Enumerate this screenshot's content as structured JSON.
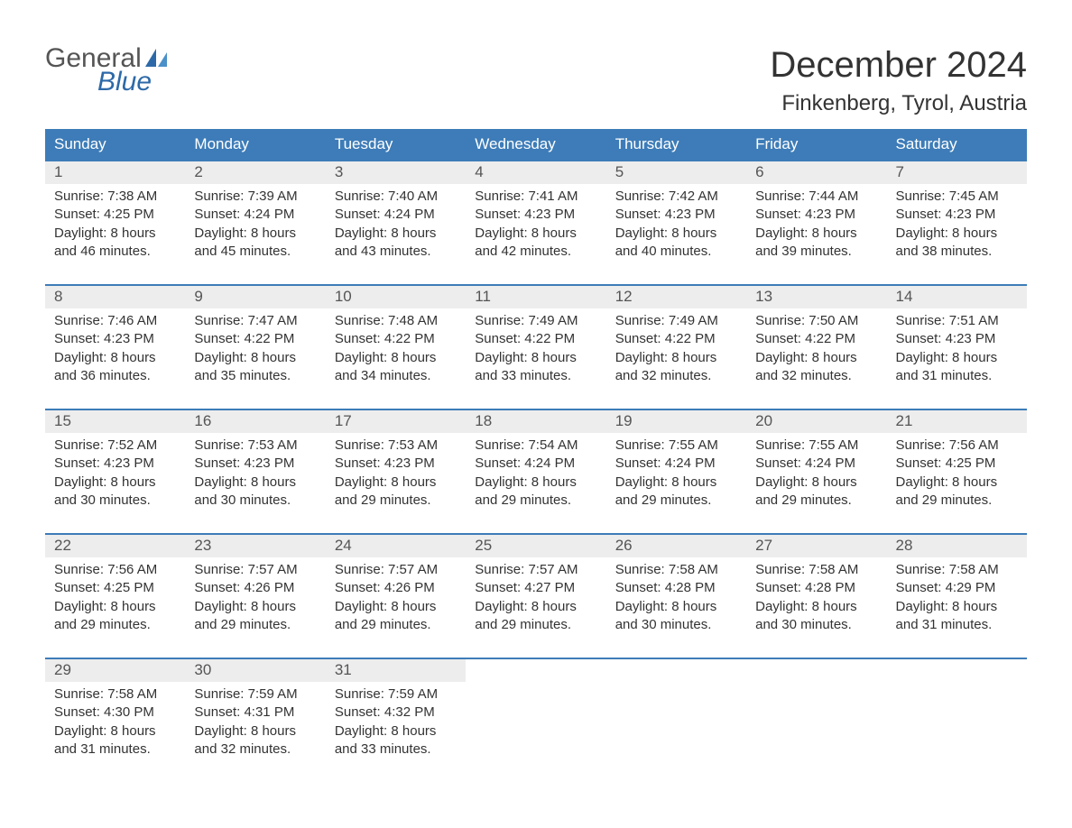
{
  "logo": {
    "text_general": "General",
    "text_blue": "Blue"
  },
  "title": "December 2024",
  "location": "Finkenberg, Tyrol, Austria",
  "colors": {
    "header_bg": "#3d7cb8",
    "header_text": "#ffffff",
    "daynum_bg": "#ededed",
    "border": "#3d7cb8",
    "text": "#333333",
    "logo_accent": "#2d69a8"
  },
  "weekdays": [
    "Sunday",
    "Monday",
    "Tuesday",
    "Wednesday",
    "Thursday",
    "Friday",
    "Saturday"
  ],
  "labels": {
    "sunrise": "Sunrise:",
    "sunset": "Sunset:",
    "daylight": "Daylight:"
  },
  "weeks": [
    [
      {
        "n": "1",
        "sr": "7:38 AM",
        "ss": "4:25 PM",
        "dl": "8 hours and 46 minutes."
      },
      {
        "n": "2",
        "sr": "7:39 AM",
        "ss": "4:24 PM",
        "dl": "8 hours and 45 minutes."
      },
      {
        "n": "3",
        "sr": "7:40 AM",
        "ss": "4:24 PM",
        "dl": "8 hours and 43 minutes."
      },
      {
        "n": "4",
        "sr": "7:41 AM",
        "ss": "4:23 PM",
        "dl": "8 hours and 42 minutes."
      },
      {
        "n": "5",
        "sr": "7:42 AM",
        "ss": "4:23 PM",
        "dl": "8 hours and 40 minutes."
      },
      {
        "n": "6",
        "sr": "7:44 AM",
        "ss": "4:23 PM",
        "dl": "8 hours and 39 minutes."
      },
      {
        "n": "7",
        "sr": "7:45 AM",
        "ss": "4:23 PM",
        "dl": "8 hours and 38 minutes."
      }
    ],
    [
      {
        "n": "8",
        "sr": "7:46 AM",
        "ss": "4:23 PM",
        "dl": "8 hours and 36 minutes."
      },
      {
        "n": "9",
        "sr": "7:47 AM",
        "ss": "4:22 PM",
        "dl": "8 hours and 35 minutes."
      },
      {
        "n": "10",
        "sr": "7:48 AM",
        "ss": "4:22 PM",
        "dl": "8 hours and 34 minutes."
      },
      {
        "n": "11",
        "sr": "7:49 AM",
        "ss": "4:22 PM",
        "dl": "8 hours and 33 minutes."
      },
      {
        "n": "12",
        "sr": "7:49 AM",
        "ss": "4:22 PM",
        "dl": "8 hours and 32 minutes."
      },
      {
        "n": "13",
        "sr": "7:50 AM",
        "ss": "4:22 PM",
        "dl": "8 hours and 32 minutes."
      },
      {
        "n": "14",
        "sr": "7:51 AM",
        "ss": "4:23 PM",
        "dl": "8 hours and 31 minutes."
      }
    ],
    [
      {
        "n": "15",
        "sr": "7:52 AM",
        "ss": "4:23 PM",
        "dl": "8 hours and 30 minutes."
      },
      {
        "n": "16",
        "sr": "7:53 AM",
        "ss": "4:23 PM",
        "dl": "8 hours and 30 minutes."
      },
      {
        "n": "17",
        "sr": "7:53 AM",
        "ss": "4:23 PM",
        "dl": "8 hours and 29 minutes."
      },
      {
        "n": "18",
        "sr": "7:54 AM",
        "ss": "4:24 PM",
        "dl": "8 hours and 29 minutes."
      },
      {
        "n": "19",
        "sr": "7:55 AM",
        "ss": "4:24 PM",
        "dl": "8 hours and 29 minutes."
      },
      {
        "n": "20",
        "sr": "7:55 AM",
        "ss": "4:24 PM",
        "dl": "8 hours and 29 minutes."
      },
      {
        "n": "21",
        "sr": "7:56 AM",
        "ss": "4:25 PM",
        "dl": "8 hours and 29 minutes."
      }
    ],
    [
      {
        "n": "22",
        "sr": "7:56 AM",
        "ss": "4:25 PM",
        "dl": "8 hours and 29 minutes."
      },
      {
        "n": "23",
        "sr": "7:57 AM",
        "ss": "4:26 PM",
        "dl": "8 hours and 29 minutes."
      },
      {
        "n": "24",
        "sr": "7:57 AM",
        "ss": "4:26 PM",
        "dl": "8 hours and 29 minutes."
      },
      {
        "n": "25",
        "sr": "7:57 AM",
        "ss": "4:27 PM",
        "dl": "8 hours and 29 minutes."
      },
      {
        "n": "26",
        "sr": "7:58 AM",
        "ss": "4:28 PM",
        "dl": "8 hours and 30 minutes."
      },
      {
        "n": "27",
        "sr": "7:58 AM",
        "ss": "4:28 PM",
        "dl": "8 hours and 30 minutes."
      },
      {
        "n": "28",
        "sr": "7:58 AM",
        "ss": "4:29 PM",
        "dl": "8 hours and 31 minutes."
      }
    ],
    [
      {
        "n": "29",
        "sr": "7:58 AM",
        "ss": "4:30 PM",
        "dl": "8 hours and 31 minutes."
      },
      {
        "n": "30",
        "sr": "7:59 AM",
        "ss": "4:31 PM",
        "dl": "8 hours and 32 minutes."
      },
      {
        "n": "31",
        "sr": "7:59 AM",
        "ss": "4:32 PM",
        "dl": "8 hours and 33 minutes."
      },
      null,
      null,
      null,
      null
    ]
  ]
}
